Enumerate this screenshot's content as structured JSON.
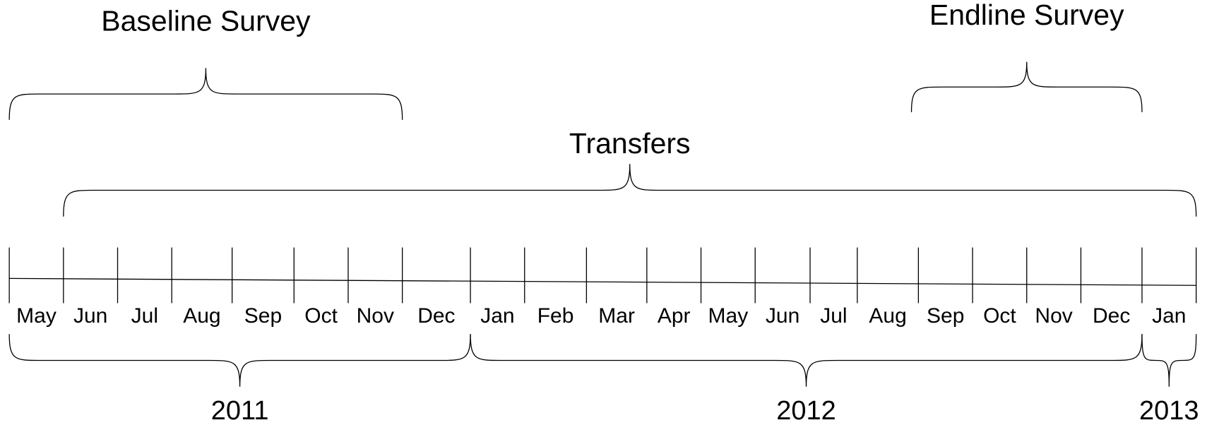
{
  "months": [
    "May",
    "Jun",
    "Jul",
    "Aug",
    "Sep",
    "Oct",
    "Nov",
    "Dec",
    "Jan",
    "Feb",
    "Mar",
    "Apr",
    "May",
    "Jun",
    "Jul",
    "Aug",
    "Sep",
    "Oct",
    "Nov",
    "Dec",
    "Jan"
  ],
  "years": [
    "2011",
    "2012",
    "2013"
  ],
  "phases": [
    "Baseline Survey",
    "Transfers",
    "Endline Survey"
  ]
}
